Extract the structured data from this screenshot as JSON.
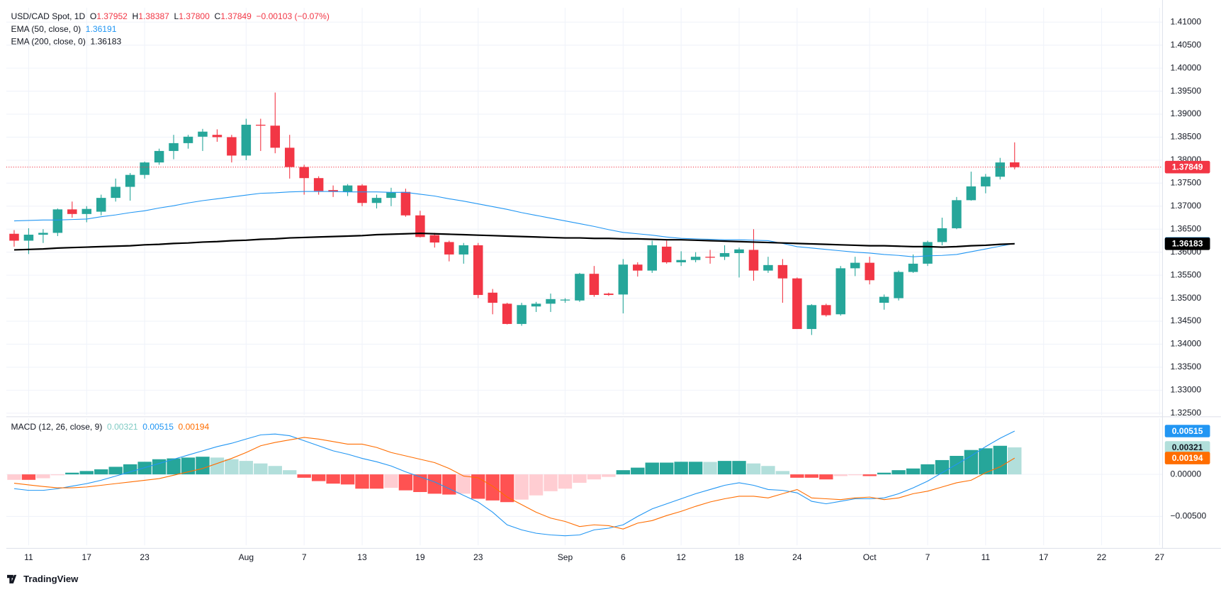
{
  "chart_data": [
    {
      "type": "candlestick",
      "title": "USD/CAD Spot, 1D",
      "ohlc_legend": [
        {
          "key": "O",
          "label": "1.37952"
        },
        {
          "key": "H",
          "label": "1.38387"
        },
        {
          "key": "L",
          "label": "1.37800"
        },
        {
          "key": "C",
          "label": "1.37849"
        }
      ],
      "change_label": "−0.00103 (−0.07%)",
      "up_color": "#26a69a",
      "down_color": "#f23645",
      "open": [
        1.364,
        1.3625,
        1.3638,
        1.3642,
        1.3693,
        1.3683,
        1.3688,
        1.3718,
        1.3742,
        1.3768,
        1.3795,
        1.382,
        1.3837,
        1.3851,
        1.3855,
        1.385,
        1.381,
        1.3877,
        1.3875,
        1.3827,
        1.3785,
        1.3761,
        1.3735,
        1.3731,
        1.3745,
        1.3707,
        1.3718,
        1.3731,
        1.368,
        1.3637,
        1.3622,
        1.3595,
        1.3615,
        1.3512,
        1.3488,
        1.3444,
        1.3482,
        1.3488,
        1.3495,
        1.3495,
        1.3553,
        1.351,
        1.3508,
        1.3573,
        1.356,
        1.3612,
        1.3578,
        1.3583,
        1.359,
        1.359,
        1.3598,
        1.3605,
        1.356,
        1.3572,
        1.3543,
        1.3433,
        1.3485,
        1.3465,
        1.3565,
        1.3577,
        1.349,
        1.35,
        1.3557,
        1.3575,
        1.3622,
        1.3652,
        1.3713,
        1.3743,
        1.3764,
        1.37952
      ],
      "high": [
        1.3648,
        1.3652,
        1.365,
        1.3695,
        1.371,
        1.37,
        1.3725,
        1.376,
        1.3772,
        1.3797,
        1.3825,
        1.3855,
        1.3855,
        1.3868,
        1.3867,
        1.3855,
        1.389,
        1.389,
        1.3947,
        1.3855,
        1.379,
        1.3765,
        1.3745,
        1.3748,
        1.3748,
        1.3725,
        1.374,
        1.3738,
        1.369,
        1.3642,
        1.3625,
        1.362,
        1.362,
        1.352,
        1.349,
        1.349,
        1.3492,
        1.351,
        1.35,
        1.3555,
        1.357,
        1.3512,
        1.3585,
        1.3578,
        1.3625,
        1.3625,
        1.3602,
        1.36,
        1.3605,
        1.3615,
        1.361,
        1.365,
        1.359,
        1.3585,
        1.3545,
        1.3487,
        1.3488,
        1.357,
        1.359,
        1.359,
        1.3508,
        1.356,
        1.3595,
        1.3625,
        1.3675,
        1.372,
        1.3775,
        1.377,
        1.3805,
        1.38387
      ],
      "low": [
        1.3612,
        1.3596,
        1.362,
        1.3635,
        1.3675,
        1.3665,
        1.368,
        1.371,
        1.3712,
        1.376,
        1.379,
        1.3802,
        1.3825,
        1.382,
        1.384,
        1.3795,
        1.38,
        1.382,
        1.3815,
        1.376,
        1.3725,
        1.3725,
        1.372,
        1.3722,
        1.37,
        1.3695,
        1.37,
        1.3677,
        1.3632,
        1.361,
        1.358,
        1.3575,
        1.35,
        1.3465,
        1.3443,
        1.344,
        1.347,
        1.347,
        1.349,
        1.3492,
        1.3503,
        1.3505,
        1.3467,
        1.3547,
        1.3555,
        1.3575,
        1.357,
        1.3578,
        1.3575,
        1.3583,
        1.3545,
        1.3538,
        1.3555,
        1.349,
        1.3433,
        1.342,
        1.346,
        1.3462,
        1.3548,
        1.353,
        1.3475,
        1.3495,
        1.3555,
        1.357,
        1.3615,
        1.365,
        1.3712,
        1.3728,
        1.3758,
        1.378
      ],
      "close": [
        1.3625,
        1.3638,
        1.3642,
        1.3693,
        1.3683,
        1.3694,
        1.3718,
        1.3742,
        1.3768,
        1.3795,
        1.382,
        1.3837,
        1.3851,
        1.3862,
        1.385,
        1.381,
        1.3877,
        1.3875,
        1.3827,
        1.3785,
        1.3761,
        1.3733,
        1.3731,
        1.3745,
        1.3707,
        1.3718,
        1.373,
        1.368,
        1.3633,
        1.3621,
        1.3595,
        1.3615,
        1.3507,
        1.349,
        1.3444,
        1.3485,
        1.3488,
        1.3498,
        1.3497,
        1.3553,
        1.3507,
        1.3507,
        1.3573,
        1.356,
        1.3615,
        1.3578,
        1.3583,
        1.359,
        1.3588,
        1.3598,
        1.3606,
        1.356,
        1.3572,
        1.3543,
        1.3433,
        1.3485,
        1.3463,
        1.3565,
        1.3577,
        1.3539,
        1.3503,
        1.3557,
        1.3575,
        1.3622,
        1.3652,
        1.3713,
        1.3743,
        1.3764,
        1.3795,
        1.37849
      ],
      "series": [
        {
          "name": "EMA (50, close, 0)",
          "color": "#2196f3",
          "width": 1,
          "values": [
            1.3668,
            1.3669,
            1.367,
            1.367,
            1.3671,
            1.3672,
            1.3677,
            1.3681,
            1.3686,
            1.369,
            1.3696,
            1.3701,
            1.3707,
            1.3712,
            1.3716,
            1.372,
            1.3724,
            1.3728,
            1.3729,
            1.3731,
            1.3732,
            1.3732,
            1.3732,
            1.3731,
            1.3731,
            1.3731,
            1.373,
            1.373,
            1.3726,
            1.3722,
            1.3716,
            1.3711,
            1.3705,
            1.3699,
            1.3693,
            1.3686,
            1.368,
            1.3674,
            1.3668,
            1.3662,
            1.3656,
            1.3649,
            1.3643,
            1.364,
            1.3637,
            1.3633,
            1.363,
            1.3629,
            1.3628,
            1.3627,
            1.3627,
            1.3626,
            1.3625,
            1.3619,
            1.3612,
            1.3609,
            1.3606,
            1.3603,
            1.36,
            1.3598,
            1.3595,
            1.3593,
            1.359,
            1.3592,
            1.3593,
            1.3595,
            1.3601,
            1.3607,
            1.3613,
            1.36191
          ]
        },
        {
          "name": "EMA (200, close, 0)",
          "color": "#000000",
          "width": 2,
          "values": [
            1.3605,
            1.3606,
            1.3607,
            1.3609,
            1.361,
            1.3611,
            1.3612,
            1.3613,
            1.3614,
            1.3616,
            1.3617,
            1.3619,
            1.362,
            1.3622,
            1.3623,
            1.3625,
            1.3626,
            1.3628,
            1.3629,
            1.3631,
            1.3632,
            1.3633,
            1.3634,
            1.3635,
            1.3636,
            1.3638,
            1.3639,
            1.364,
            1.3641,
            1.364,
            1.3639,
            1.3638,
            1.3637,
            1.3636,
            1.3635,
            1.3634,
            1.3633,
            1.3632,
            1.3631,
            1.3631,
            1.363,
            1.363,
            1.3629,
            1.3629,
            1.3628,
            1.3627,
            1.3627,
            1.3626,
            1.3625,
            1.3624,
            1.3623,
            1.3622,
            1.3621,
            1.362,
            1.3619,
            1.3618,
            1.3617,
            1.3616,
            1.3615,
            1.3614,
            1.3614,
            1.3613,
            1.3612,
            1.3612,
            1.3611,
            1.3612,
            1.3614,
            1.3615,
            1.3617,
            1.36183
          ]
        }
      ],
      "ylim": [
        1.32457,
        1.41312
      ],
      "yticks": [
        {
          "value": 1.41,
          "label": "1.41000"
        },
        {
          "value": 1.405,
          "label": "1.40500"
        },
        {
          "value": 1.4,
          "label": "1.40000"
        },
        {
          "value": 1.395,
          "label": "1.39500"
        },
        {
          "value": 1.39,
          "label": "1.39000"
        },
        {
          "value": 1.385,
          "label": "1.38500"
        },
        {
          "value": 1.38,
          "label": "1.38000"
        },
        {
          "value": 1.375,
          "label": "1.37500"
        },
        {
          "value": 1.37,
          "label": "1.37000"
        },
        {
          "value": 1.365,
          "label": "1.36500"
        },
        {
          "value": 1.36,
          "label": "1.36000"
        },
        {
          "value": 1.355,
          "label": "1.35500"
        },
        {
          "value": 1.35,
          "label": "1.35000"
        },
        {
          "value": 1.345,
          "label": "1.34500"
        },
        {
          "value": 1.34,
          "label": "1.34000"
        },
        {
          "value": 1.335,
          "label": "1.33500"
        },
        {
          "value": 1.33,
          "label": "1.33000"
        },
        {
          "value": 1.325,
          "label": "1.32500"
        }
      ],
      "xlim": [
        -0.54,
        79.2
      ],
      "xticks": [
        {
          "value": 1,
          "label": "11"
        },
        {
          "value": 5,
          "label": "17"
        },
        {
          "value": 9,
          "label": "23"
        },
        {
          "value": 16,
          "label": "Aug"
        },
        {
          "value": 20,
          "label": "7"
        },
        {
          "value": 24,
          "label": "13"
        },
        {
          "value": 28,
          "label": "19"
        },
        {
          "value": 32,
          "label": "23"
        },
        {
          "value": 38,
          "label": "Sep"
        },
        {
          "value": 42,
          "label": "6"
        },
        {
          "value": 46,
          "label": "12"
        },
        {
          "value": 50,
          "label": "18"
        },
        {
          "value": 54,
          "label": "24"
        },
        {
          "value": 59,
          "label": "Oct"
        },
        {
          "value": 63,
          "label": "7"
        },
        {
          "value": 67,
          "label": "11"
        },
        {
          "value": 71,
          "label": "17"
        },
        {
          "value": 75,
          "label": "22"
        },
        {
          "value": 79,
          "label": "27"
        }
      ],
      "grid": true
    },
    {
      "type": "macd",
      "title": "MACD (12, 26, close, 9)",
      "histogram": {
        "colors": {
          "grow_above": "#26a69a",
          "fall_above": "#b2dfdb",
          "grow_below": "#ffcdd2",
          "fall_below": "#ff5252"
        },
        "values": [
          -0.00065,
          -0.00065,
          -0.00046,
          -0.0001,
          0.0002,
          0.0004,
          0.0006,
          0.0009,
          0.0012,
          0.0015,
          0.0018,
          0.0019,
          0.002,
          0.0021,
          0.002,
          0.0018,
          0.0016,
          0.0013,
          0.001,
          0.0005,
          -0.0004,
          -0.0008,
          -0.0011,
          -0.0012,
          -0.0017,
          -0.0017,
          -0.0016,
          -0.0019,
          -0.0021,
          -0.0023,
          -0.0024,
          -0.0023,
          -0.0029,
          -0.0031,
          -0.0033,
          -0.003,
          -0.0025,
          -0.002,
          -0.0017,
          -0.001,
          -0.0006,
          -0.0003,
          0.0005,
          0.0008,
          0.0014,
          0.0014,
          0.0015,
          0.0015,
          0.00148,
          0.0016,
          0.0016,
          0.0013,
          0.001,
          0.0004,
          -0.0004,
          -0.0004,
          -0.0006,
          -0.0002,
          -0.0001,
          -0.0002,
          0.0002,
          0.0005,
          0.0007,
          0.0012,
          0.0017,
          0.0022,
          0.0029,
          0.0031,
          0.0034,
          0.00321
        ]
      },
      "macd": {
        "color": "#2196f3",
        "values": [
          -0.0017,
          -0.0019,
          -0.0019,
          -0.0017,
          -0.0014,
          -0.0011,
          -0.0007,
          -0.0002,
          0.0003,
          0.0008,
          0.0013,
          0.0018,
          0.0023,
          0.0028,
          0.0033,
          0.0037,
          0.0042,
          0.0047,
          0.0048,
          0.0046,
          0.004,
          0.0034,
          0.0028,
          0.0024,
          0.0019,
          0.0015,
          0.001,
          0.0003,
          -0.0003,
          -0.0009,
          -0.0017,
          -0.0025,
          -0.0033,
          -0.0045,
          -0.006,
          -0.0066,
          -0.007,
          -0.0072,
          -0.0073,
          -0.0072,
          -0.0066,
          -0.0064,
          -0.006,
          -0.005,
          -0.0041,
          -0.0035,
          -0.0029,
          -0.0023,
          -0.0018,
          -0.0013,
          -0.001,
          -0.0013,
          -0.0018,
          -0.0019,
          -0.0022,
          -0.0032,
          -0.0035,
          -0.0032,
          -0.0029,
          -0.0029,
          -0.0028,
          -0.0023,
          -0.0016,
          -0.0008,
          0.0002,
          0.0012,
          0.0022,
          0.0033,
          0.0043,
          0.00515
        ]
      },
      "signal": {
        "color": "#ff6d00",
        "values": [
          -0.00105,
          -0.00125,
          -0.00144,
          -0.0016,
          -0.0016,
          -0.0015,
          -0.0013,
          -0.0011,
          -0.0009,
          -0.0007,
          -0.0005,
          -0.0001,
          0.0003,
          0.0007,
          0.0013,
          0.0019,
          0.0026,
          0.0034,
          0.0038,
          0.0041,
          0.0044,
          0.0042,
          0.0039,
          0.0036,
          0.0036,
          0.0032,
          0.0026,
          0.0022,
          0.0018,
          0.0014,
          0.0007,
          -0.0002,
          -0.0004,
          -0.0014,
          -0.0027,
          -0.0036,
          -0.0045,
          -0.0052,
          -0.0056,
          -0.0062,
          -0.006,
          -0.0061,
          -0.0065,
          -0.0058,
          -0.0055,
          -0.0049,
          -0.0044,
          -0.0038,
          -0.00328,
          -0.0029,
          -0.0026,
          -0.0026,
          -0.0028,
          -0.0023,
          -0.0018,
          -0.0028,
          -0.0029,
          -0.003,
          -0.0028,
          -0.0027,
          -0.003,
          -0.0028,
          -0.0023,
          -0.002,
          -0.0015,
          -0.001,
          -0.0007,
          0.0002,
          0.0009,
          0.00194
        ]
      },
      "ylim": [
        -0.00843,
        0.00667
      ],
      "yticks": [
        {
          "value": 0,
          "label": "0.00000"
        },
        {
          "value": -0.005,
          "label": "−0.00500"
        }
      ],
      "grid": true
    }
  ],
  "footer": {
    "brand": "TradingView"
  }
}
